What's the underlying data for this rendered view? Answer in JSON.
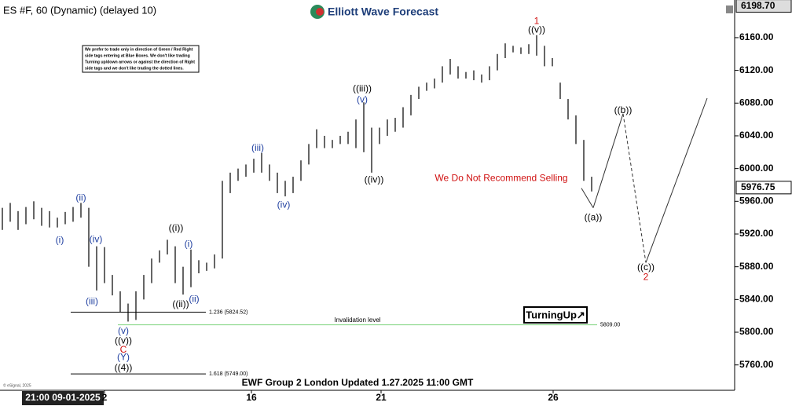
{
  "header": {
    "title": "ES #F, 60 (Dynamic) (delayed 10)",
    "logo": "Elliott Wave Forecast",
    "footer": "EWF Group 2 London Updated 1.27.2025 11:00 GMT",
    "copyright": "© eSignal, 2025",
    "brand": "TurningUp↗",
    "note": [
      "We prefer to trade only in direction of Green / Red Right",
      "side tags entering at Blue Boxes. We don't like trading",
      "Turning up/down arrows or against the direction of Right",
      "side tags and we don't like trading the dotted lines."
    ]
  },
  "chart_data": {
    "type": "ohlc",
    "color": "#000000",
    "high": [
      5952,
      5958,
      5948,
      5953,
      5960,
      5952,
      5948,
      5940,
      5947,
      5953,
      5958,
      5952,
      5905,
      5904,
      5870,
      5850,
      5835,
      5850,
      5870,
      5890,
      5900,
      5913,
      5905,
      5880,
      5901,
      5888,
      5885,
      5895,
      5985,
      5995,
      6000,
      6005,
      6012,
      6019,
      6005,
      5995,
      5985,
      5990,
      6010,
      6030,
      6048,
      6040,
      6035,
      6040,
      6045,
      6060,
      6081,
      6050,
      6050,
      6060,
      6062,
      6075,
      6090,
      6100,
      6105,
      6110,
      6125,
      6134,
      6125,
      6118,
      6120,
      6115,
      6125,
      6140,
      6153,
      6150,
      6148,
      6152,
      6163,
      6150,
      6135,
      6105,
      6085,
      6065,
      6035,
      5990
    ],
    "low": [
      5925,
      5935,
      5925,
      5932,
      5938,
      5930,
      5928,
      5928,
      5932,
      5935,
      5940,
      5880,
      5851,
      5860,
      5845,
      5825,
      5813,
      5815,
      5840,
      5860,
      5885,
      5895,
      5860,
      5846,
      5855,
      5872,
      5875,
      5878,
      5890,
      5970,
      5985,
      5990,
      5995,
      5995,
      5985,
      5970,
      5966,
      5970,
      5985,
      6005,
      6025,
      6025,
      6025,
      6030,
      6030,
      6025,
      6020,
      5995,
      6030,
      6040,
      6045,
      6050,
      6065,
      6085,
      6095,
      6098,
      6105,
      6115,
      6110,
      6110,
      6108,
      6105,
      6108,
      6120,
      6135,
      6142,
      6140,
      6140,
      6138,
      6125,
      6125,
      6085,
      6060,
      6030,
      5985,
      5972
    ],
    "xlim": [
      0,
      93.5
    ],
    "ylim": [
      5729,
      6206
    ],
    "xticks": [
      {
        "value": 8,
        "label": "21:00 09-01-2025"
      },
      {
        "value": 13.3,
        "label": "2"
      },
      {
        "value": 32,
        "label": "16"
      },
      {
        "value": 48.5,
        "label": "21"
      },
      {
        "value": 70.4,
        "label": "26"
      }
    ],
    "yticks": [
      {
        "value": 5760,
        "label": "5760.00"
      },
      {
        "value": 5800,
        "label": "5800.00"
      },
      {
        "value": 5840,
        "label": "5840.00"
      },
      {
        "value": 5880,
        "label": "5880.00"
      },
      {
        "value": 5920,
        "label": "5920.00"
      },
      {
        "value": 5960,
        "label": "5960.00"
      },
      {
        "value": 6000,
        "label": "6000.00"
      },
      {
        "value": 6040,
        "label": "6040.00"
      },
      {
        "value": 6080,
        "label": "6080.00"
      },
      {
        "value": 6120,
        "label": "6120.00"
      },
      {
        "value": 6160,
        "label": "6160.00"
      }
    ],
    "price_tags": [
      {
        "value": 6198.7,
        "label": "6198.70"
      },
      {
        "value": 5976.75,
        "label": "5976.75"
      }
    ],
    "projection": {
      "x": [
        74,
        75.5,
        79.3,
        82.2,
        90
      ],
      "values": [
        5976,
        5952,
        6067,
        5885,
        6086
      ]
    },
    "levels": [
      {
        "value": 5824.52,
        "label": "1.236 (5824.52)",
        "x": [
          9,
          26.2
        ],
        "color": "#000000"
      },
      {
        "value": 5749,
        "label": "1.618 (5749.00)",
        "x": [
          9,
          26.2
        ],
        "color": "#000000"
      },
      {
        "value": 5809,
        "label": "5809.00",
        "name": "Invalidation level",
        "x": [
          15,
          76
        ],
        "color": "#7fd47f"
      }
    ],
    "annotations": [
      {
        "text": "1",
        "x": 68.3,
        "y": 6180,
        "color": "#d01010"
      },
      {
        "text": "((v))",
        "x": 68.3,
        "y": 6169,
        "color": "#000000"
      },
      {
        "text": "((iii))",
        "x": 46.1,
        "y": 6097,
        "color": "#000000"
      },
      {
        "text": "(v)",
        "x": 46.1,
        "y": 6084,
        "color": "#1f3fa0"
      },
      {
        "text": "((iv))",
        "x": 47.6,
        "y": 5986,
        "color": "#000000"
      },
      {
        "text": "(iii)",
        "x": 32.8,
        "y": 6025,
        "color": "#1f3fa0"
      },
      {
        "text": "(iv)",
        "x": 36.1,
        "y": 5955,
        "color": "#1f3fa0"
      },
      {
        "text": "(ii)",
        "x": 10.3,
        "y": 5964,
        "color": "#1f3fa0"
      },
      {
        "text": "(i)",
        "x": 7.6,
        "y": 5912,
        "color": "#1f3fa0"
      },
      {
        "text": "(iv)",
        "x": 12.2,
        "y": 5913,
        "color": "#1f3fa0"
      },
      {
        "text": "(iii)",
        "x": 11.7,
        "y": 5837,
        "color": "#1f3fa0"
      },
      {
        "text": "((i))",
        "x": 22.4,
        "y": 5927,
        "color": "#000000"
      },
      {
        "text": "(i)",
        "x": 24,
        "y": 5907,
        "color": "#1f3fa0"
      },
      {
        "text": "((ii))",
        "x": 23,
        "y": 5834,
        "color": "#000000"
      },
      {
        "text": "(ii)",
        "x": 24.7,
        "y": 5840,
        "color": "#1f3fa0"
      },
      {
        "text": "(v)",
        "x": 15.7,
        "y": 5801,
        "color": "#1f3fa0"
      },
      {
        "text": "((v))",
        "x": 15.7,
        "y": 5789,
        "color": "#000000"
      },
      {
        "text": "C",
        "x": 15.7,
        "y": 5778,
        "color": "#d01010"
      },
      {
        "text": "(Y)",
        "x": 15.7,
        "y": 5769,
        "color": "#1f3fa0"
      },
      {
        "text": "((4))",
        "x": 15.7,
        "y": 5756,
        "color": "#000000"
      },
      {
        "text": "((b))",
        "x": 79.3,
        "y": 6071,
        "color": "#000000"
      },
      {
        "text": "((a))",
        "x": 75.5,
        "y": 5940,
        "color": "#000000"
      },
      {
        "text": "((c))",
        "x": 82.2,
        "y": 5879,
        "color": "#000000"
      },
      {
        "text": "2",
        "x": 82.2,
        "y": 5867,
        "color": "#d01010"
      },
      {
        "text": "We Do Not Recommend Selling",
        "x": 63.8,
        "y": 5988,
        "color": "#d01010"
      }
    ]
  }
}
